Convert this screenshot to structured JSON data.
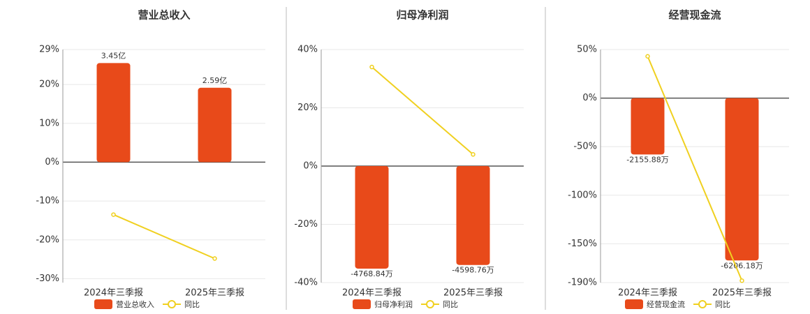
{
  "chart_data": [
    {
      "type": "bar",
      "title": "营业总收入",
      "categories": [
        "2024年三季报",
        "2025年三季报"
      ],
      "series": [
        {
          "name": "营业总收入",
          "type": "bar",
          "color": "#e84a1a",
          "values": [
            3.45,
            2.59
          ],
          "value_labels": [
            "3.45亿",
            "2.59亿"
          ]
        },
        {
          "name": "同比",
          "type": "line",
          "color": "#f0d020",
          "values": [
            -13.5,
            -24.8
          ]
        }
      ],
      "ylim": [
        -31,
        29
      ],
      "yticks": [
        {
          "value": 29,
          "label": "29%"
        },
        {
          "value": 20,
          "label": "20%"
        },
        {
          "value": 10,
          "label": "10%"
        },
        {
          "value": 0,
          "label": "0%"
        },
        {
          "value": -10,
          "label": "-10%"
        },
        {
          "value": -20,
          "label": "-20%"
        },
        {
          "value": -30,
          "label": "-30%"
        }
      ],
      "grid": true
    },
    {
      "type": "bar",
      "title": "归母净利润",
      "categories": [
        "2024年三季报",
        "2025年三季报"
      ],
      "series": [
        {
          "name": "归母净利润",
          "type": "bar",
          "color": "#e84a1a",
          "values": [
            -4768.84,
            -4598.76
          ],
          "value_labels": [
            "-4768.84万",
            "-4598.76万"
          ]
        },
        {
          "name": "同比",
          "type": "line",
          "color": "#f0d020",
          "values": [
            34,
            4
          ]
        }
      ],
      "ylim": [
        -40,
        40
      ],
      "yticks": [
        {
          "value": 40,
          "label": "40%"
        },
        {
          "value": 20,
          "label": "20%"
        },
        {
          "value": 0,
          "label": "0%"
        },
        {
          "value": -20,
          "label": "-20%"
        },
        {
          "value": -40,
          "label": "-40%"
        }
      ],
      "grid": true
    },
    {
      "type": "bar",
      "title": "经营现金流",
      "categories": [
        "2024年三季报",
        "2025年三季报"
      ],
      "series": [
        {
          "name": "经营现金流",
          "type": "bar",
          "color": "#e84a1a",
          "values": [
            -2155.88,
            -6206.18
          ],
          "value_labels": [
            "-2155.88万",
            "-6206.18万"
          ]
        },
        {
          "name": "同比",
          "type": "line",
          "color": "#f0d020",
          "values": [
            43,
            -188
          ]
        }
      ],
      "ylim": [
        -190,
        50
      ],
      "yticks": [
        {
          "value": 50,
          "label": "50%"
        },
        {
          "value": 0,
          "label": "0%"
        },
        {
          "value": -50,
          "label": "-50%"
        },
        {
          "value": -100,
          "label": "-100%"
        },
        {
          "value": -150,
          "label": "-150%"
        },
        {
          "value": -190,
          "label": "-190%"
        }
      ],
      "grid": true
    }
  ]
}
